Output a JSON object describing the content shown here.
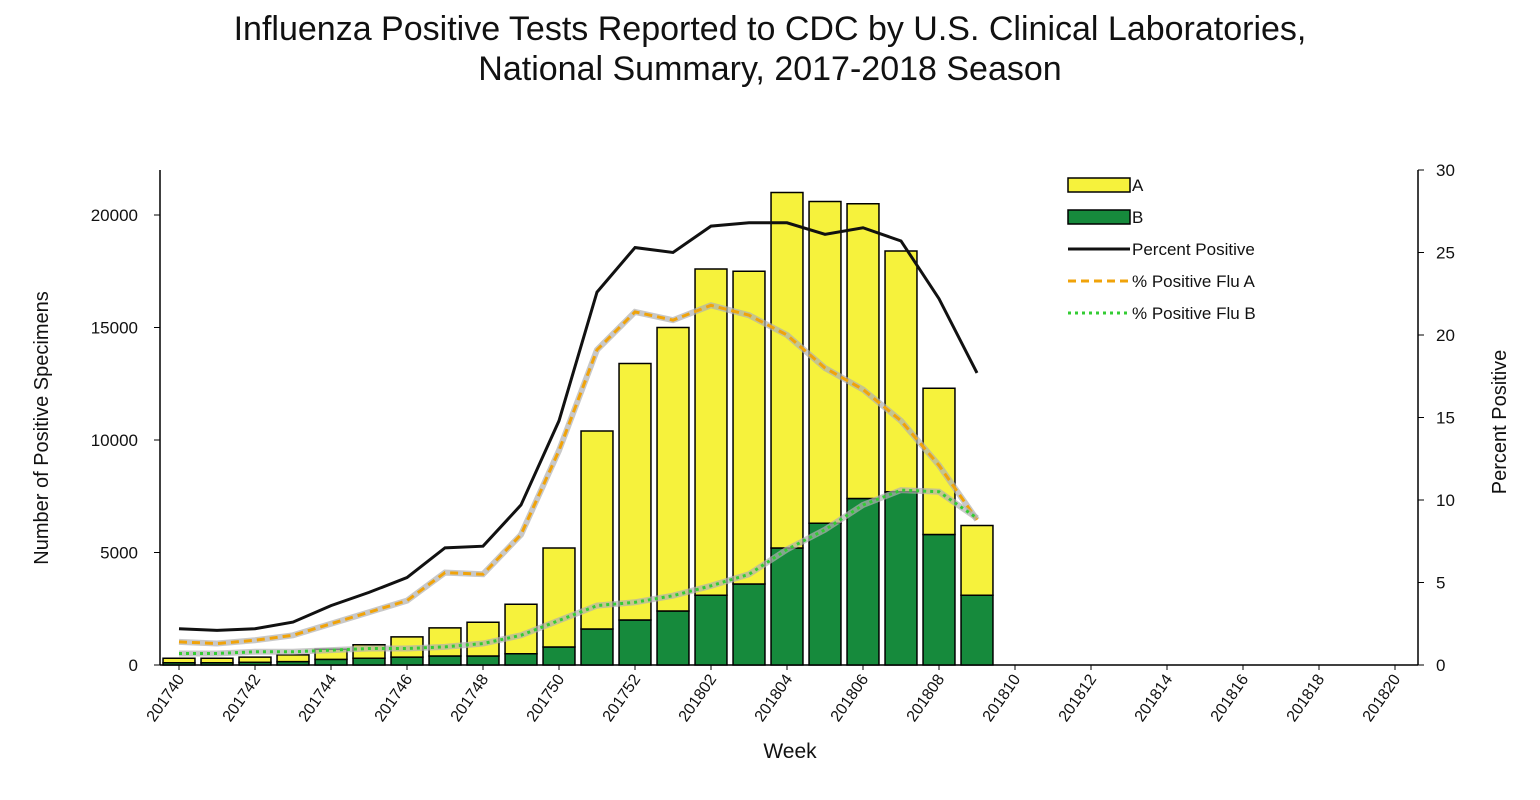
{
  "chart_data": {
    "type": "bar",
    "stacked": true,
    "title": [
      "Influenza Positive Tests Reported to CDC by U.S. Clinical Laboratories,",
      "National Summary, 2017-2018 Season"
    ],
    "xlabel": "Week",
    "ylabel": "Number of Positive Specimens",
    "y2label": "Percent Positive",
    "categories": [
      "201740",
      null,
      "201742",
      null,
      "201744",
      null,
      "201746",
      null,
      "201748",
      null,
      "201750",
      null,
      "201752",
      null,
      "201802",
      null,
      "201804",
      null,
      "201806",
      null,
      "201808",
      null,
      "201810",
      null,
      "201812",
      null,
      "201814",
      null,
      "201816",
      null,
      "201818",
      null,
      "201820"
    ],
    "ylim": [
      0,
      22000
    ],
    "yticks": [
      0,
      5000,
      10000,
      15000,
      20000
    ],
    "y2lim": [
      0,
      30
    ],
    "y2ticks": [
      0,
      5,
      10,
      15,
      20,
      25,
      30
    ],
    "legend": "upper right",
    "series": [
      {
        "name": "A",
        "type": "bar",
        "color": "#f6f23c",
        "values": [
          200,
          200,
          230,
          300,
          450,
          600,
          900,
          1250,
          1500,
          2200,
          4400,
          8800,
          11400,
          12600,
          14500,
          13900,
          15800,
          14300,
          13100,
          10700,
          6500,
          3100,
          null,
          null,
          null,
          null,
          null,
          null,
          null,
          null,
          null,
          null,
          null
        ]
      },
      {
        "name": "B",
        "type": "bar",
        "color": "#168a3c",
        "values": [
          100,
          100,
          120,
          150,
          250,
          300,
          350,
          400,
          400,
          500,
          800,
          1600,
          2000,
          2400,
          3100,
          3600,
          5200,
          6300,
          7400,
          7700,
          5800,
          3100,
          null,
          null,
          null,
          null,
          null,
          null,
          null,
          null,
          null,
          null,
          null
        ]
      },
      {
        "name": "Percent Positive",
        "type": "line",
        "axis": "y2",
        "color": "#111111",
        "style": "solid",
        "values": [
          2.2,
          2.1,
          2.2,
          2.6,
          3.6,
          4.4,
          5.3,
          7.1,
          7.2,
          9.7,
          14.8,
          22.6,
          25.3,
          25.0,
          26.6,
          26.8,
          26.8,
          26.1,
          26.5,
          25.7,
          22.2,
          17.7,
          null,
          null,
          null,
          null,
          null,
          null,
          null,
          null,
          null,
          null,
          null
        ]
      },
      {
        "name": "% Positive Flu A",
        "type": "line",
        "axis": "y2",
        "color": "#f0a30a",
        "style": "dashed",
        "values": [
          1.4,
          1.3,
          1.5,
          1.8,
          2.5,
          3.2,
          3.9,
          5.6,
          5.5,
          7.9,
          13.0,
          19.1,
          21.4,
          20.9,
          21.8,
          21.2,
          20.0,
          18.0,
          16.7,
          14.8,
          12.1,
          8.8,
          null,
          null,
          null,
          null,
          null,
          null,
          null,
          null,
          null,
          null,
          null
        ]
      },
      {
        "name": "% Positive Flu B",
        "type": "line",
        "axis": "y2",
        "color": "#33cc33",
        "style": "dotted",
        "values": [
          0.7,
          0.7,
          0.8,
          0.8,
          0.9,
          1.0,
          1.0,
          1.1,
          1.3,
          1.8,
          2.7,
          3.6,
          3.8,
          4.2,
          4.8,
          5.5,
          7.0,
          8.2,
          9.7,
          10.6,
          10.5,
          8.9,
          null,
          null,
          null,
          null,
          null,
          null,
          null,
          null,
          null,
          null,
          null
        ]
      }
    ]
  }
}
